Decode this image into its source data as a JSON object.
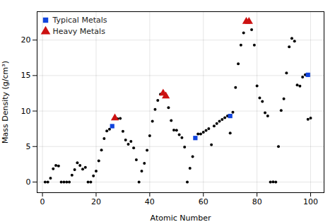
{
  "chart_data": {
    "type": "scatter",
    "x_label": "Atomic Number",
    "y_label": "Mass Density (g/cm³)",
    "xlim": [
      -2,
      105
    ],
    "ylim": [
      -1.5,
      24
    ],
    "xticks": [
      0,
      20,
      40,
      60,
      80,
      100
    ],
    "yticks": [
      0,
      5,
      10,
      15,
      20
    ],
    "grid": true,
    "legend": "upper left",
    "series": [
      {
        "color": "#000000",
        "marker": "circle",
        "x": [
          1,
          2,
          3,
          4,
          5,
          6,
          7,
          8,
          9,
          10,
          11,
          12,
          13,
          14,
          15,
          16,
          17,
          18,
          19,
          20,
          21,
          22,
          23,
          24,
          25,
          26,
          27,
          28,
          29,
          30,
          31,
          32,
          33,
          34,
          35,
          36,
          37,
          38,
          39,
          40,
          41,
          42,
          43,
          44,
          45,
          46,
          47,
          48,
          49,
          50,
          51,
          52,
          53,
          54,
          55,
          56,
          57,
          58,
          59,
          60,
          61,
          62,
          63,
          64,
          65,
          66,
          67,
          68,
          69,
          70,
          71,
          72,
          73,
          74,
          75,
          76,
          77,
          78,
          79,
          80,
          81,
          82,
          83,
          84,
          85,
          86,
          87,
          88,
          89,
          90,
          91,
          92,
          93,
          94,
          95,
          96,
          97,
          98,
          99,
          100
        ],
        "values": [
          9e-05,
          0.00018,
          0.53,
          1.85,
          2.34,
          2.26,
          0.0012,
          0.0014,
          0.0017,
          0.0009,
          0.97,
          1.74,
          2.7,
          2.33,
          1.82,
          2.07,
          0.003,
          0.0018,
          0.86,
          1.54,
          2.99,
          4.51,
          6.11,
          7.19,
          7.43,
          7.87,
          8.9,
          8.9,
          8.96,
          7.13,
          5.91,
          5.32,
          5.73,
          4.79,
          3.12,
          0.0037,
          1.53,
          2.64,
          4.47,
          6.51,
          8.57,
          10.22,
          11.5,
          12.37,
          12.41,
          12.02,
          10.49,
          8.65,
          7.31,
          7.29,
          6.68,
          6.24,
          4.93,
          0.006,
          1.93,
          3.59,
          6.15,
          6.77,
          6.77,
          7.01,
          7.26,
          7.52,
          5.24,
          7.9,
          8.23,
          8.55,
          8.8,
          9.07,
          9.32,
          6.9,
          9.84,
          13.31,
          16.65,
          19.3,
          21.02,
          22.59,
          22.56,
          21.45,
          19.3,
          13.55,
          11.85,
          11.34,
          9.75,
          9.32,
          0.0,
          0.0097,
          0.0,
          5.0,
          10.07,
          11.72,
          15.37,
          19.05,
          20.25,
          19.84,
          13.67,
          13.51,
          14.79,
          15.1,
          8.84,
          9.0
        ]
      },
      {
        "name": "Typical Metals",
        "color": "#1144dd",
        "marker": "square",
        "x": [
          26,
          57,
          70,
          99
        ],
        "values": [
          7.87,
          6.2,
          9.3,
          15.1
        ]
      },
      {
        "name": "Heavy Metals",
        "color": "#cc1111",
        "marker": "triangle",
        "x": [
          27,
          45,
          46,
          76,
          77
        ],
        "values": [
          9.0,
          12.5,
          12.1,
          22.6,
          22.6
        ]
      }
    ]
  }
}
